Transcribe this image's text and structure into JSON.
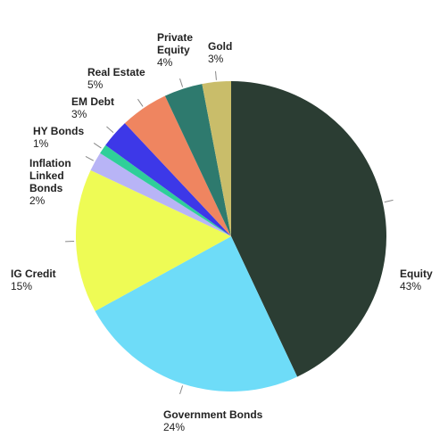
{
  "chart_data": {
    "type": "pie",
    "categories": [
      "Equity",
      "Government Bonds",
      "IG Credit",
      "Inflation\nLinked\nBonds",
      "HY Bonds",
      "EM Debt",
      "Real Estate",
      "Private\nEquity",
      "Gold"
    ],
    "values": [
      43,
      24,
      15,
      2,
      1,
      3,
      5,
      4,
      3
    ],
    "value_labels": [
      "43%",
      "24%",
      "15%",
      "2%",
      "1%",
      "3%",
      "5%",
      "4%",
      "3%"
    ],
    "colors": [
      "#2b3d33",
      "#6edcf8",
      "#eefb55",
      "#b8b4f6",
      "#2fcf99",
      "#3d38e8",
      "#ef8560",
      "#2e7a6e",
      "#c9bd6a"
    ]
  }
}
